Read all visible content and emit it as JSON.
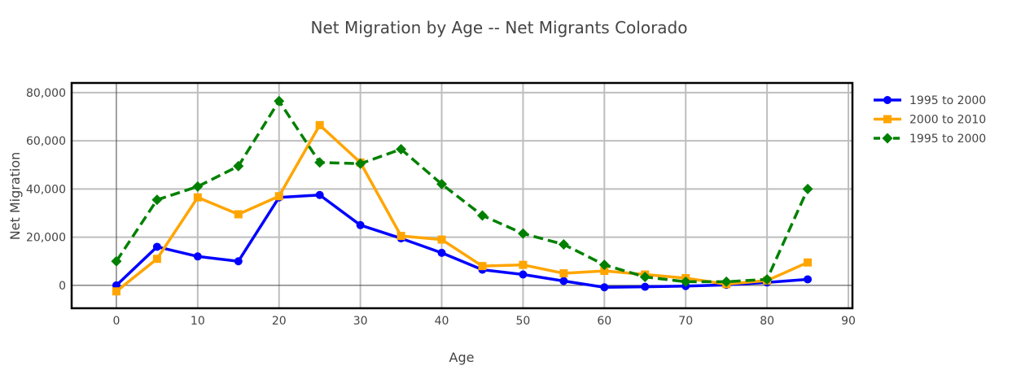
{
  "chart_data": {
    "type": "line",
    "title": "Net Migration by Age -- Net Migrants Colorado",
    "xlabel": "Age",
    "ylabel": "Net Migration",
    "xlim": [
      -5.5,
      90.5
    ],
    "ylim": [
      -9500,
      84000
    ],
    "xticks": [
      0,
      10,
      20,
      30,
      40,
      50,
      60,
      70,
      80,
      90
    ],
    "xtick_labels": [
      "0",
      "10",
      "20",
      "30",
      "40",
      "50",
      "60",
      "70",
      "80",
      "90"
    ],
    "yticks": [
      0,
      20000,
      40000,
      60000,
      80000
    ],
    "ytick_labels": [
      "0",
      "20,000",
      "40,000",
      "60,000",
      "80,000"
    ],
    "grid": true,
    "legend_position": "right",
    "x": [
      0,
      5,
      10,
      15,
      20,
      25,
      30,
      35,
      40,
      45,
      50,
      55,
      60,
      65,
      70,
      75,
      80,
      85
    ],
    "series": [
      {
        "name": "1995 to 2000",
        "color": "#0000ff",
        "marker": "circle",
        "dash": "solid",
        "values": [
          0,
          16000,
          12000,
          10000,
          36500,
          37500,
          25000,
          19500,
          13500,
          6500,
          4500,
          1800,
          -800,
          -600,
          -300,
          200,
          1200,
          2500
        ]
      },
      {
        "name": "2000 to 2010",
        "color": "#ffa500",
        "marker": "square",
        "dash": "solid",
        "values": [
          -2500,
          11000,
          36500,
          29500,
          37000,
          66500,
          51000,
          20500,
          19000,
          8000,
          8500,
          5000,
          6000,
          4500,
          3000,
          500,
          2000,
          9500
        ]
      },
      {
        "name": "1995 to 2000",
        "color": "#008000",
        "marker": "diamond",
        "dash": "dash",
        "values": [
          10000,
          35500,
          41000,
          49500,
          76500,
          51000,
          50500,
          56500,
          42000,
          29000,
          21500,
          17000,
          8500,
          3500,
          1500,
          1500,
          2500,
          40000
        ]
      }
    ]
  }
}
